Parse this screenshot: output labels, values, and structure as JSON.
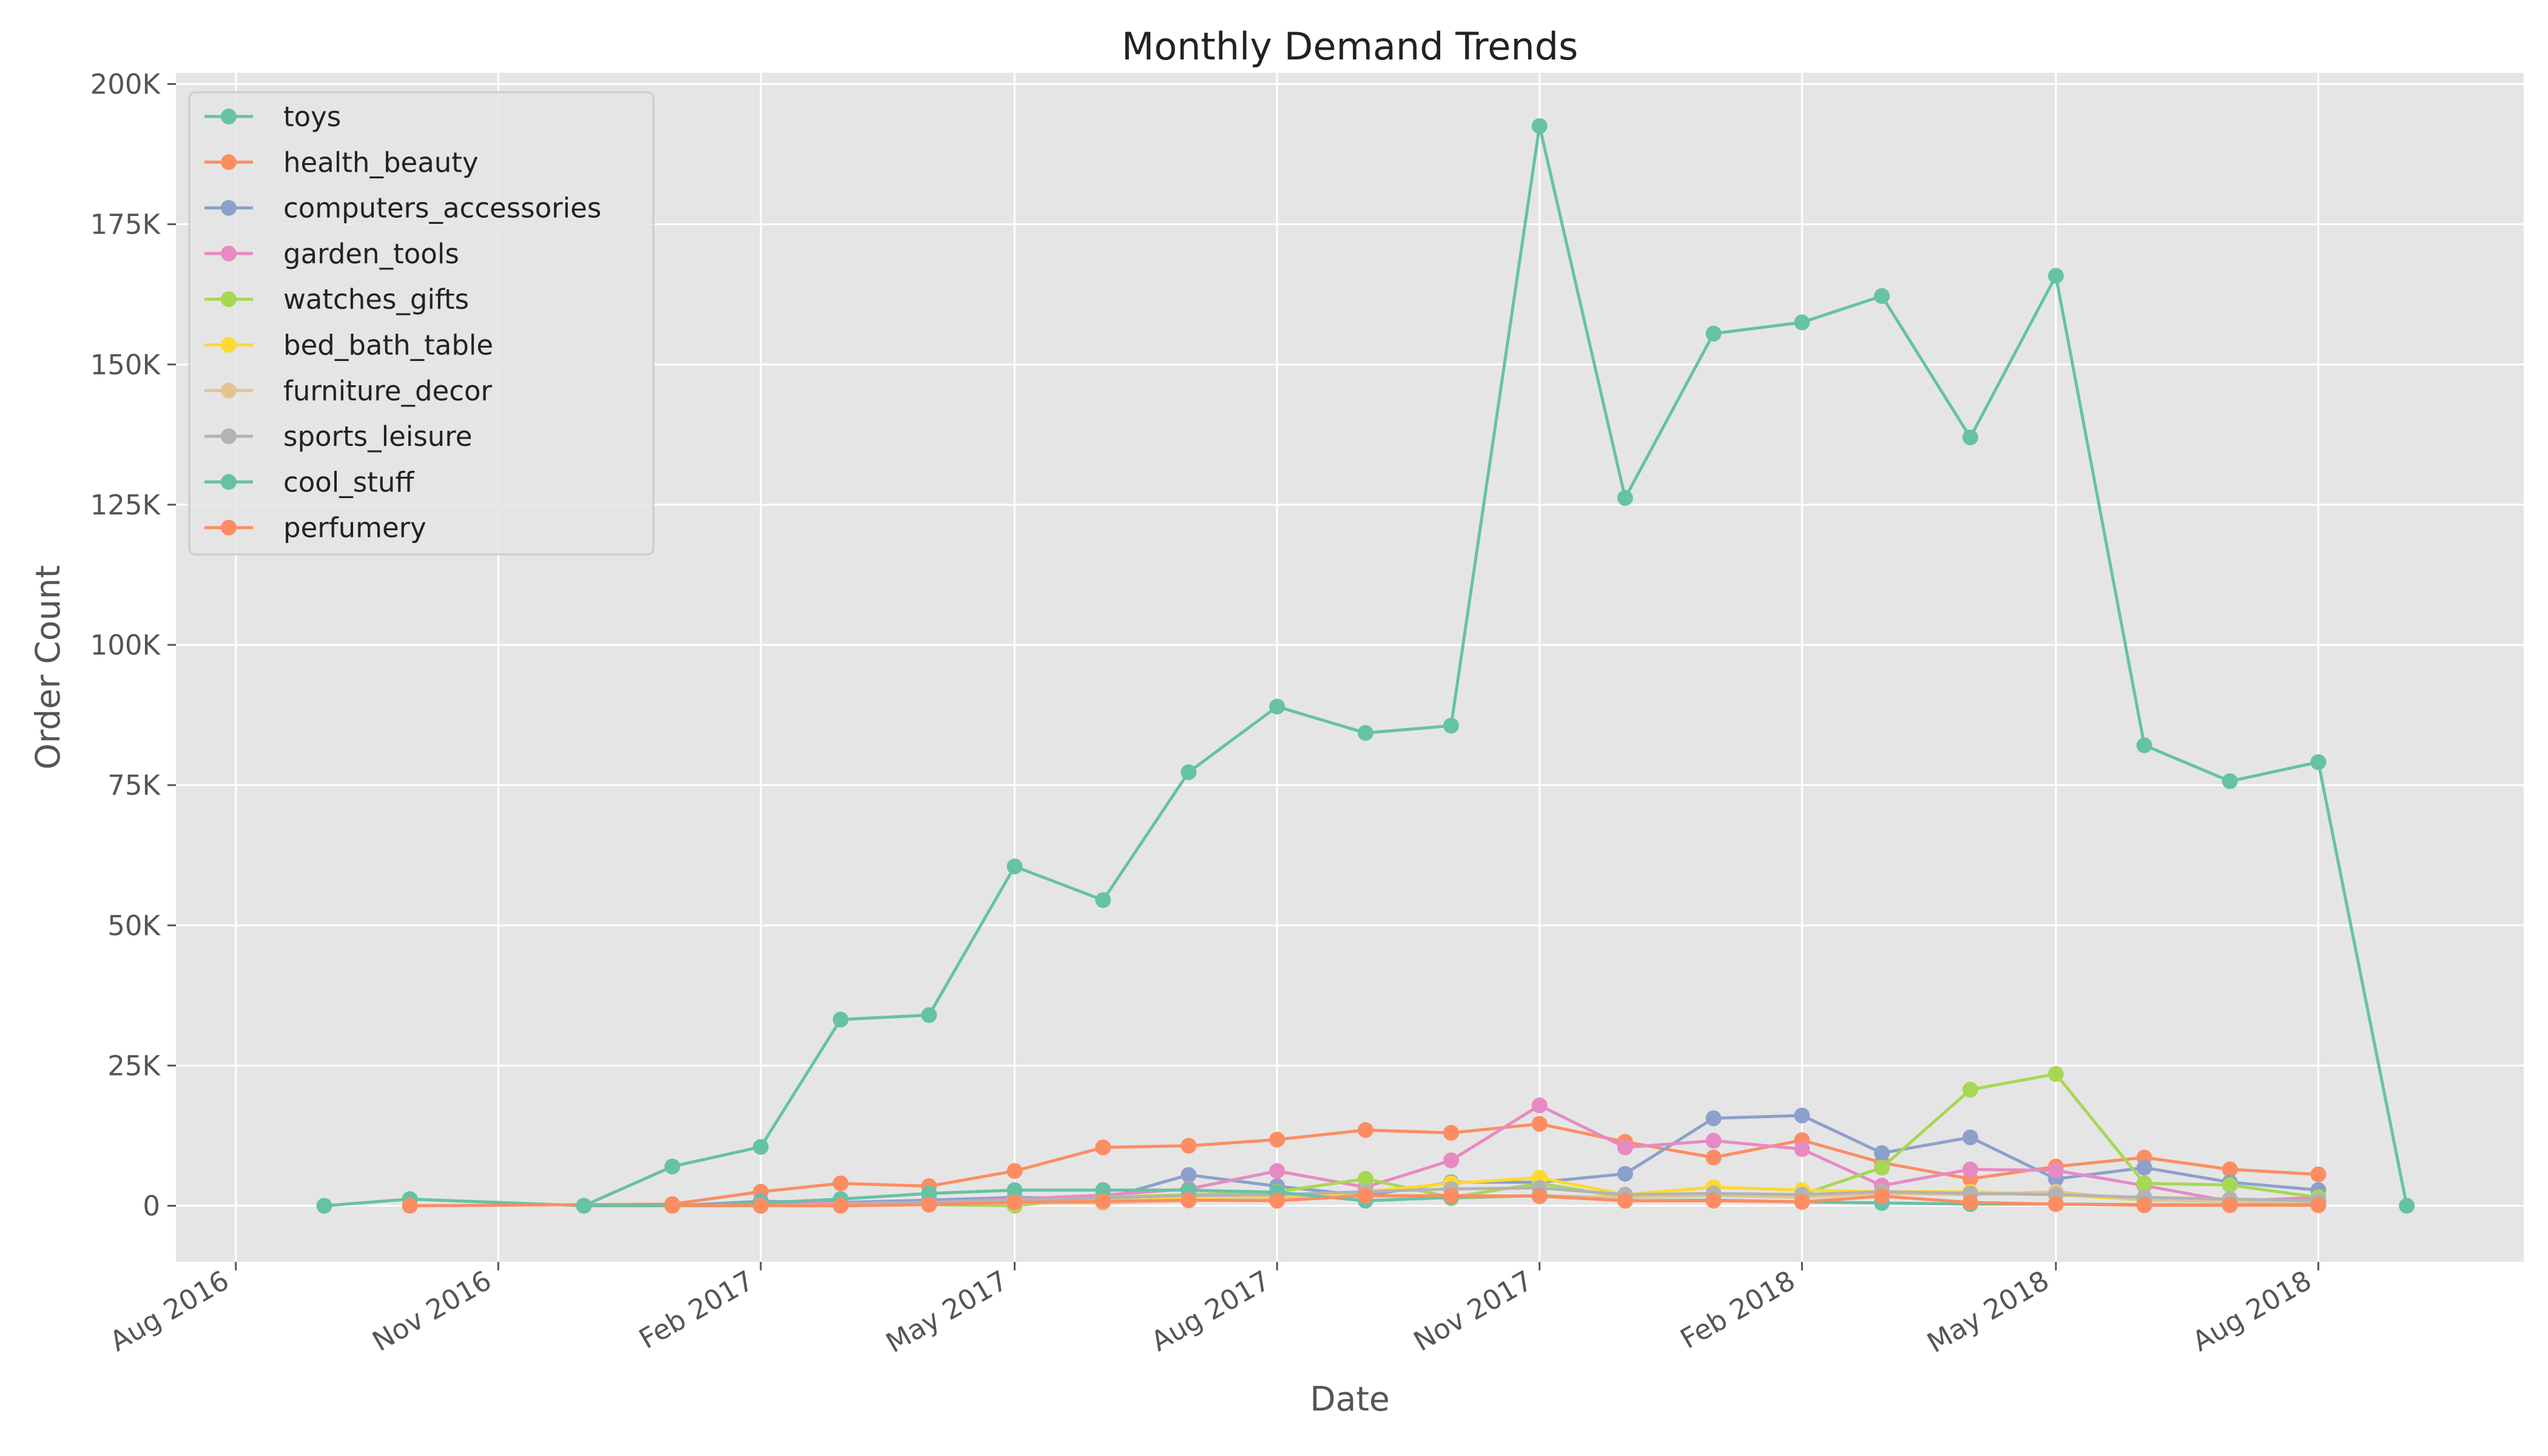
{
  "chart_data": {
    "type": "line",
    "title": "Monthly Demand Trends",
    "xlabel": "Date",
    "ylabel": "Order Count",
    "xlim": [
      "2016-07-11",
      "2018-10-12"
    ],
    "ylim": [
      -10000,
      202000
    ],
    "x_ticks": [
      {
        "date": "2016-08-01",
        "label": "Aug 2016"
      },
      {
        "date": "2016-11-01",
        "label": "Nov 2016"
      },
      {
        "date": "2017-02-01",
        "label": "Feb 2017"
      },
      {
        "date": "2017-05-01",
        "label": "May 2017"
      },
      {
        "date": "2017-08-01",
        "label": "Aug 2017"
      },
      {
        "date": "2017-11-01",
        "label": "Nov 2017"
      },
      {
        "date": "2018-02-01",
        "label": "Feb 2018"
      },
      {
        "date": "2018-05-01",
        "label": "May 2018"
      },
      {
        "date": "2018-08-01",
        "label": "Aug 2018"
      }
    ],
    "y_ticks": [
      {
        "value": 0,
        "label": "0"
      },
      {
        "value": 25000,
        "label": "25K"
      },
      {
        "value": 50000,
        "label": "50K"
      },
      {
        "value": 75000,
        "label": "75K"
      },
      {
        "value": 100000,
        "label": "100K"
      },
      {
        "value": 125000,
        "label": "125K"
      },
      {
        "value": 150000,
        "label": "150K"
      },
      {
        "value": 175000,
        "label": "175K"
      },
      {
        "value": 200000,
        "label": "200K"
      }
    ],
    "grid": true,
    "legend_position": "top-left",
    "series": [
      {
        "name": "toys",
        "color": "#66c2a5",
        "x": [
          "2016-09-01",
          "2016-10-01",
          "2016-12-01",
          "2017-01-01",
          "2017-02-01",
          "2017-03-01",
          "2017-04-01",
          "2017-05-01",
          "2017-06-01",
          "2017-07-01",
          "2017-08-01",
          "2017-09-01",
          "2017-10-01",
          "2017-11-01",
          "2017-12-01",
          "2018-01-01",
          "2018-02-01",
          "2018-03-01",
          "2018-04-01",
          "2018-05-01",
          "2018-06-01",
          "2018-07-01",
          "2018-08-01",
          "2018-09-01"
        ],
        "values": [
          0,
          1200,
          0,
          7000,
          10500,
          33200,
          34000,
          60500,
          54500,
          77300,
          89000,
          84300,
          85600,
          192500,
          126200,
          155500,
          157500,
          162200,
          137000,
          165800,
          82100,
          75700,
          79100,
          0
        ]
      },
      {
        "name": "health_beauty",
        "color": "#fc8d62",
        "x": [
          "2016-10-01",
          "2017-01-01",
          "2017-02-01",
          "2017-03-01",
          "2017-04-01",
          "2017-05-01",
          "2017-06-01",
          "2017-07-01",
          "2017-08-01",
          "2017-09-01",
          "2017-10-01",
          "2017-11-01",
          "2017-12-01",
          "2018-01-01",
          "2018-02-01",
          "2018-03-01",
          "2018-04-01",
          "2018-05-01",
          "2018-06-01",
          "2018-07-01",
          "2018-08-01"
        ],
        "values": [
          0,
          300,
          2500,
          4000,
          3500,
          6200,
          10400,
          10700,
          11800,
          13500,
          13000,
          14600,
          11400,
          8600,
          11700,
          7700,
          4800,
          7000,
          8600,
          6500,
          5600
        ]
      },
      {
        "name": "computers_accessories",
        "color": "#8da0cb",
        "x": [
          "2017-01-01",
          "2017-02-01",
          "2017-03-01",
          "2017-04-01",
          "2017-05-01",
          "2017-06-01",
          "2017-07-01",
          "2017-08-01",
          "2017-09-01",
          "2017-10-01",
          "2017-11-01",
          "2017-12-01",
          "2018-01-01",
          "2018-02-01",
          "2018-03-01",
          "2018-04-01",
          "2018-05-01",
          "2018-06-01",
          "2018-07-01",
          "2018-08-01"
        ],
        "values": [
          0,
          800,
          600,
          1000,
          1500,
          1200,
          5500,
          3500,
          1800,
          4200,
          4200,
          5700,
          15600,
          16100,
          9400,
          12200,
          4800,
          6800,
          4200,
          2800
        ]
      },
      {
        "name": "garden_tools",
        "color": "#e78ac3",
        "x": [
          "2017-01-01",
          "2017-02-01",
          "2017-03-01",
          "2017-04-01",
          "2017-05-01",
          "2017-06-01",
          "2017-07-01",
          "2017-08-01",
          "2017-09-01",
          "2017-10-01",
          "2017-11-01",
          "2017-12-01",
          "2018-01-01",
          "2018-02-01",
          "2018-03-01",
          "2018-04-01",
          "2018-05-01",
          "2018-06-01",
          "2018-07-01",
          "2018-08-01"
        ],
        "values": [
          0,
          300,
          500,
          600,
          1200,
          1900,
          3000,
          6200,
          3300,
          8100,
          17900,
          10400,
          11600,
          10100,
          3600,
          6500,
          6300,
          3600,
          800,
          1500
        ]
      },
      {
        "name": "watches_gifts",
        "color": "#a6d854",
        "x": [
          "2017-03-01",
          "2017-04-01",
          "2017-05-01",
          "2017-06-01",
          "2017-07-01",
          "2017-08-01",
          "2017-09-01",
          "2017-10-01",
          "2017-11-01",
          "2017-12-01",
          "2018-01-01",
          "2018-02-01",
          "2018-03-01",
          "2018-04-01",
          "2018-05-01",
          "2018-06-01",
          "2018-07-01",
          "2018-08-01"
        ],
        "values": [
          0,
          200,
          0,
          1500,
          2000,
          2500,
          4800,
          1500,
          4000,
          1500,
          1800,
          2000,
          6800,
          20700,
          23500,
          4000,
          3700,
          1500
        ]
      },
      {
        "name": "bed_bath_table",
        "color": "#ffd92f",
        "x": [
          "2017-02-01",
          "2017-03-01",
          "2017-04-01",
          "2017-05-01",
          "2017-06-01",
          "2017-07-01",
          "2017-08-01",
          "2017-09-01",
          "2017-10-01",
          "2017-11-01",
          "2017-12-01",
          "2018-01-01",
          "2018-02-01",
          "2018-03-01",
          "2018-04-01",
          "2018-05-01",
          "2018-06-01",
          "2018-07-01",
          "2018-08-01"
        ],
        "values": [
          0,
          300,
          400,
          600,
          900,
          1200,
          1500,
          2500,
          4000,
          5000,
          2000,
          3300,
          2800,
          2500,
          2500,
          2000,
          1000,
          800,
          600
        ]
      },
      {
        "name": "furniture_decor",
        "color": "#e5c494",
        "x": [
          "2017-02-01",
          "2017-03-01",
          "2017-04-01",
          "2017-05-01",
          "2017-06-01",
          "2017-07-01",
          "2017-08-01",
          "2017-09-01",
          "2017-10-01",
          "2017-11-01",
          "2017-12-01",
          "2018-01-01",
          "2018-02-01",
          "2018-03-01",
          "2018-04-01",
          "2018-05-01",
          "2018-06-01",
          "2018-07-01",
          "2018-08-01"
        ],
        "values": [
          0,
          200,
          300,
          500,
          500,
          900,
          1300,
          1800,
          1300,
          1800,
          1500,
          1800,
          1500,
          2200,
          2000,
          2500,
          1000,
          800,
          600
        ]
      },
      {
        "name": "sports_leisure",
        "color": "#b3b3b3",
        "x": [
          "2017-02-01",
          "2017-03-01",
          "2017-04-01",
          "2017-05-01",
          "2017-06-01",
          "2017-07-01",
          "2017-08-01",
          "2017-09-01",
          "2017-10-01",
          "2017-11-01",
          "2017-12-01",
          "2018-01-01",
          "2018-02-01",
          "2018-03-01",
          "2018-04-01",
          "2018-05-01",
          "2018-06-01",
          "2018-07-01",
          "2018-08-01"
        ],
        "values": [
          0,
          300,
          600,
          1000,
          1400,
          1800,
          2000,
          2500,
          3000,
          3200,
          2000,
          2200,
          2000,
          2500,
          2200,
          2000,
          1500,
          1200,
          900
        ]
      },
      {
        "name": "cool_stuff",
        "color": "#66c2a5",
        "x": [
          "2016-12-01",
          "2017-01-01",
          "2017-02-01",
          "2017-03-01",
          "2017-04-01",
          "2017-05-01",
          "2017-06-01",
          "2017-07-01",
          "2017-08-01",
          "2017-09-01",
          "2017-10-01",
          "2017-11-01",
          "2017-12-01",
          "2018-01-01",
          "2018-02-01",
          "2018-03-01",
          "2018-04-01",
          "2018-05-01",
          "2018-06-01",
          "2018-07-01",
          "2018-08-01"
        ],
        "values": [
          0,
          0,
          500,
          1200,
          2200,
          2800,
          2800,
          2800,
          2400,
          900,
          1500,
          1800,
          900,
          1000,
          700,
          500,
          300,
          300,
          200,
          200,
          200
        ]
      },
      {
        "name": "perfumery",
        "color": "#fc8d62",
        "x": [
          "2017-01-01",
          "2017-02-01",
          "2017-03-01",
          "2017-04-01",
          "2017-05-01",
          "2017-06-01",
          "2017-07-01",
          "2017-08-01",
          "2017-09-01",
          "2017-10-01",
          "2017-11-01",
          "2017-12-01",
          "2018-01-01",
          "2018-02-01",
          "2018-03-01",
          "2018-04-01",
          "2018-05-01",
          "2018-06-01",
          "2018-07-01",
          "2018-08-01"
        ],
        "values": [
          0,
          0,
          0,
          200,
          600,
          800,
          1000,
          900,
          1800,
          1800,
          1700,
          900,
          900,
          700,
          1700,
          600,
          300,
          100,
          100,
          100
        ]
      }
    ]
  }
}
